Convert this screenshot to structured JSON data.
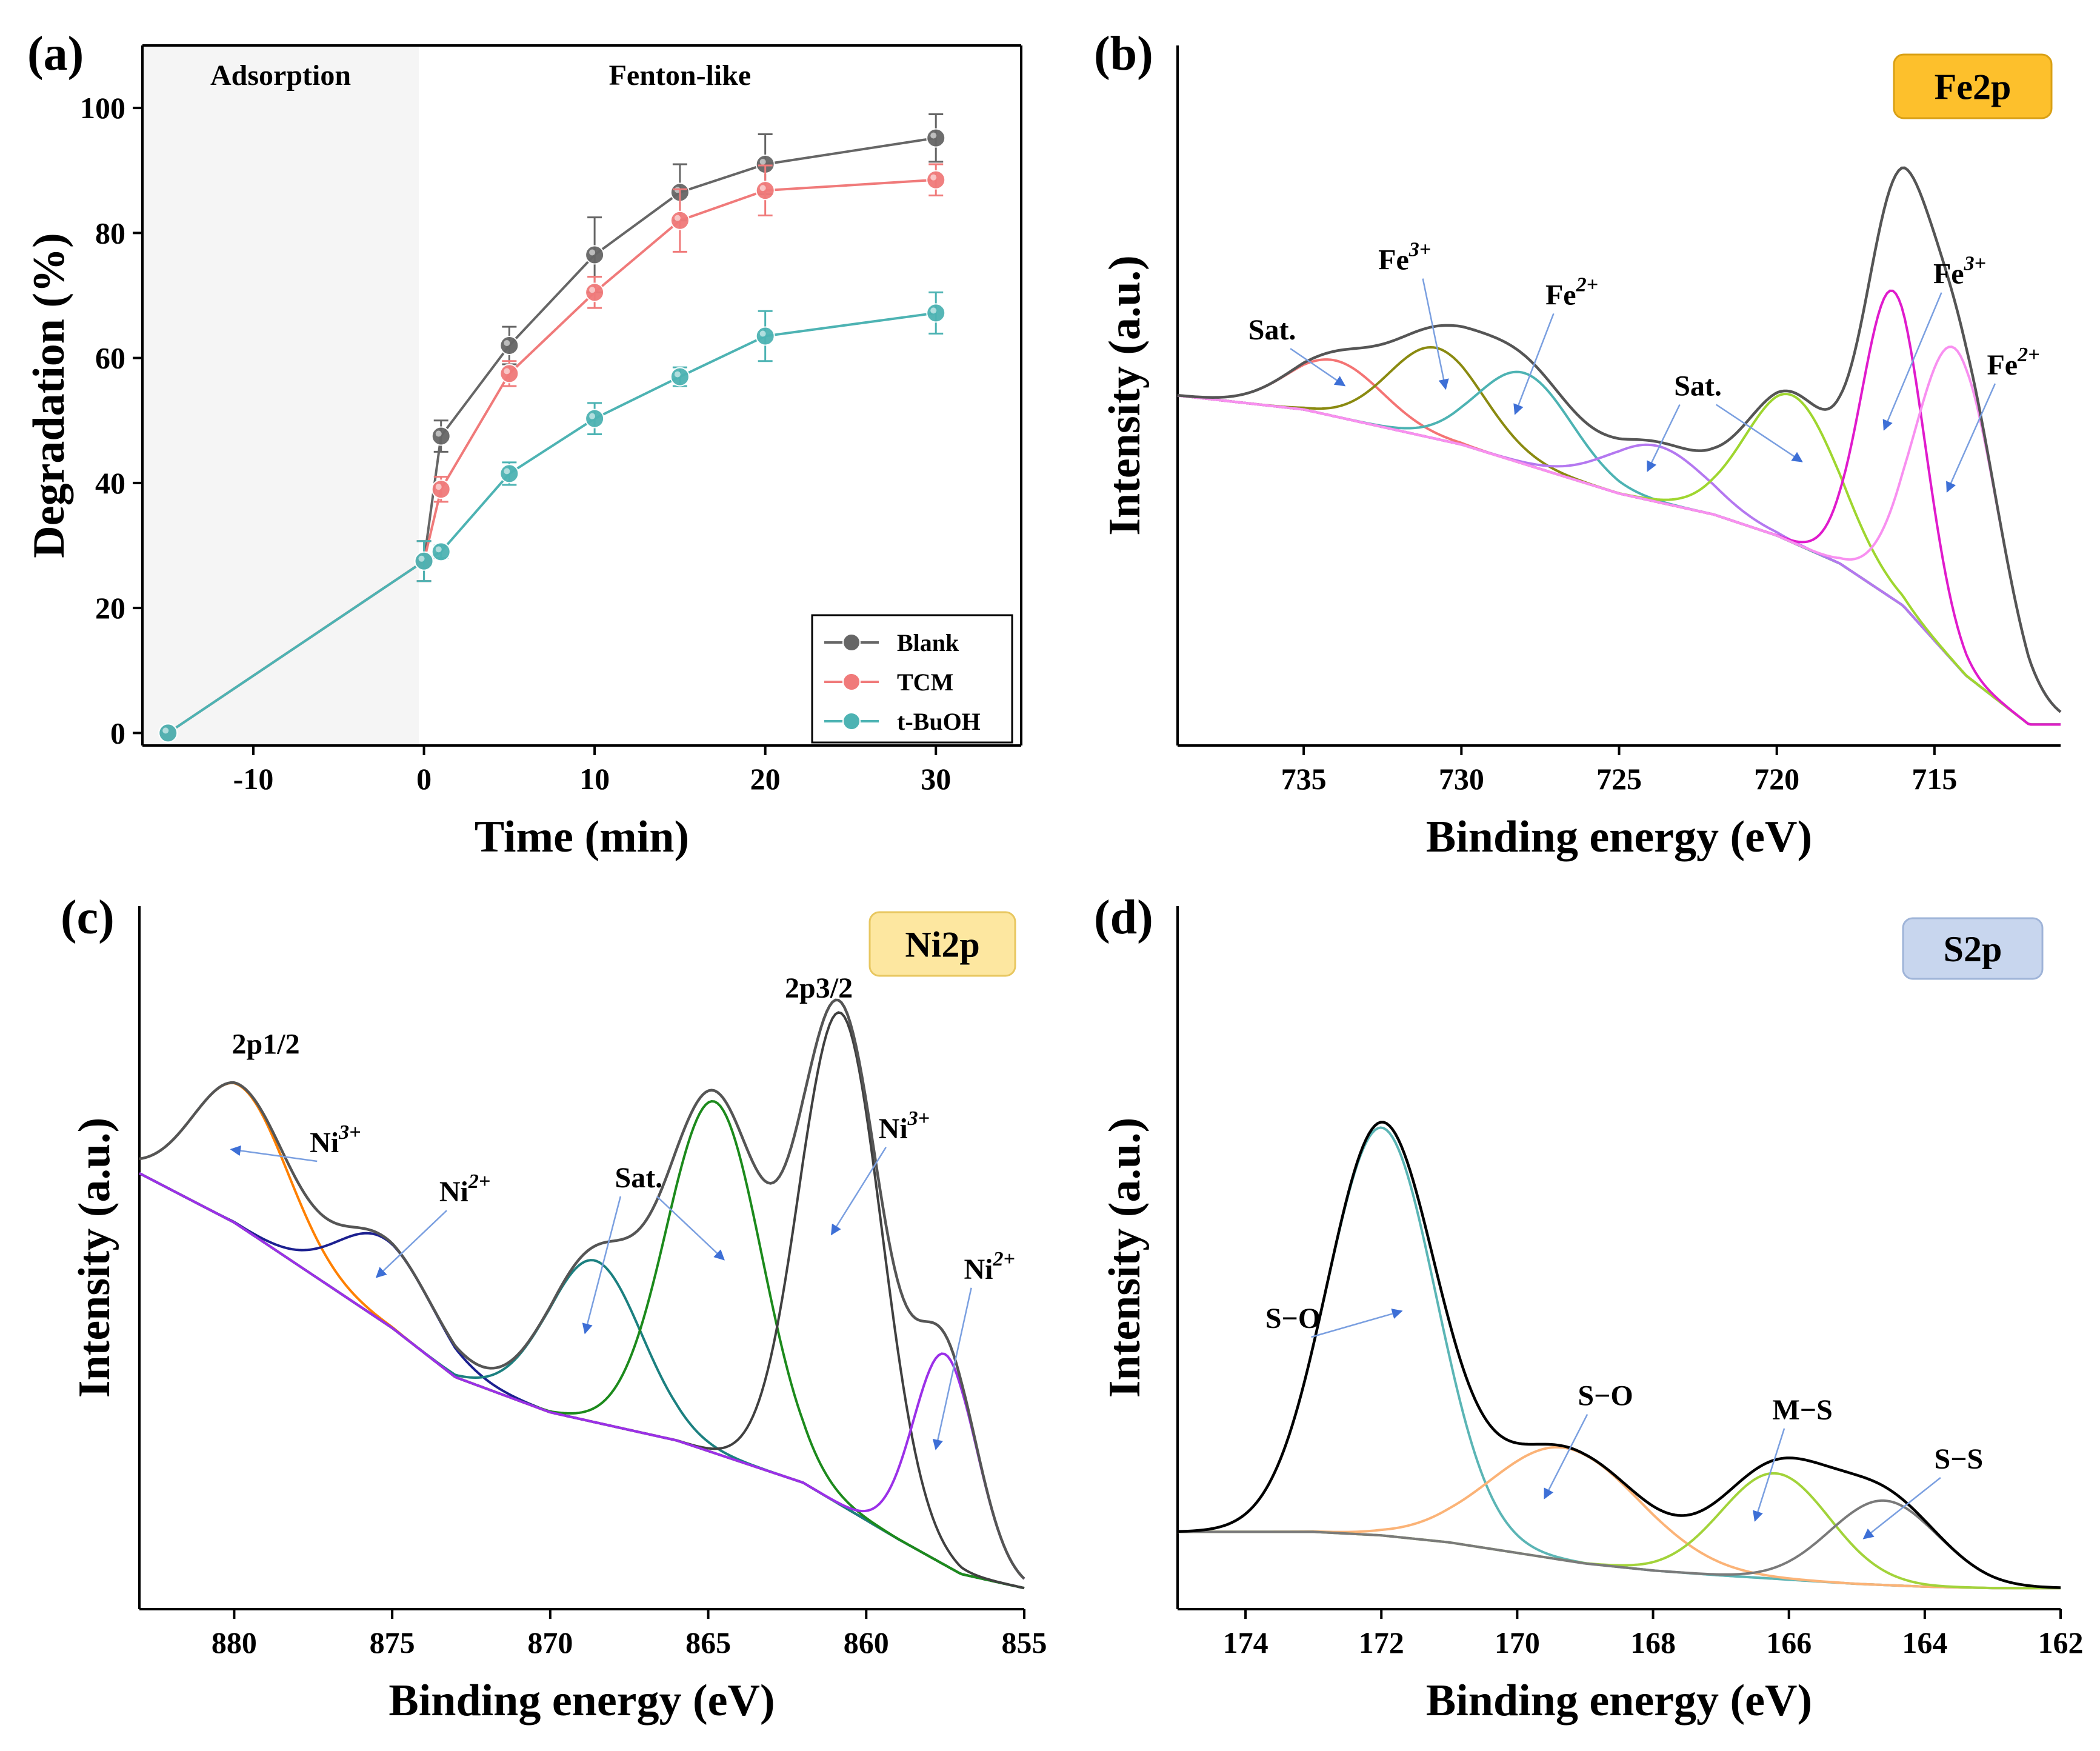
{
  "chart_data": [
    {
      "panel": "(a)",
      "type": "line",
      "xlabel": "Time (min)",
      "ylabel": "Degradation (%)",
      "xlim": [
        -16.5,
        35
      ],
      "ylim": [
        -2,
        110
      ],
      "xticks": [
        -10,
        0,
        10,
        20,
        30
      ],
      "yticks": [
        0,
        20,
        40,
        60,
        80,
        100
      ],
      "regions": [
        {
          "label": "Adsorption",
          "range": [
            -16.5,
            -0.3
          ],
          "color": "#f5f5f5"
        },
        {
          "label": "Fenton-like",
          "range": [
            -0.3,
            35
          ],
          "color": "#ffffff"
        }
      ],
      "legend_position": "bottom-right",
      "series": [
        {
          "name": "Blank",
          "color": "#666666",
          "x": [
            -15,
            0,
            1,
            5,
            10,
            15,
            20,
            30
          ],
          "y": [
            0,
            27.5,
            47.5,
            62,
            76.5,
            86.5,
            91,
            95.2
          ],
          "err": [
            0,
            3.2,
            2.5,
            3,
            6,
            4.5,
            4.8,
            3.8
          ]
        },
        {
          "name": "TCM",
          "color": "#f07a7a",
          "x": [
            -15,
            0,
            1,
            5,
            10,
            15,
            20,
            30
          ],
          "y": [
            0,
            27.5,
            39,
            57.5,
            70.5,
            82,
            86.8,
            88.5
          ],
          "err": [
            0,
            3.2,
            2,
            2,
            2.5,
            5,
            4,
            2.5
          ]
        },
        {
          "name": "t-BuOH",
          "color": "#4db3b3",
          "x": [
            -15,
            0,
            1,
            5,
            10,
            15,
            20,
            30
          ],
          "y": [
            0,
            27.5,
            29,
            41.5,
            50.3,
            57,
            63.5,
            67.2
          ],
          "err": [
            0,
            3.2,
            1,
            1.8,
            2.5,
            1.5,
            4,
            3.3
          ]
        }
      ]
    },
    {
      "panel": "(b)",
      "type": "line",
      "xlabel": "Binding energy (eV)",
      "ylabel": "Intensity (a.u.)",
      "xlim": [
        739,
        711
      ],
      "ylim": [
        0,
        1
      ],
      "xticks": [
        735,
        730,
        725,
        720,
        715
      ],
      "badge": {
        "text": "Fe2p",
        "fill": "#fdc02c",
        "stroke": "#d9a015"
      },
      "background": {
        "x": [
          739,
          735,
          730,
          725,
          722,
          720,
          718,
          716,
          714,
          712,
          711
        ],
        "y": [
          0.5,
          0.48,
          0.43,
          0.36,
          0.33,
          0.3,
          0.26,
          0.2,
          0.1,
          0.03,
          0.03
        ]
      },
      "peaks": [
        {
          "label": "Sat.",
          "center": 734,
          "height": 0.08,
          "width": 1.5,
          "color": "#f47474"
        },
        {
          "label": "Fe3+",
          "center": 730.8,
          "height": 0.13,
          "width": 1.5,
          "color": "#8a8a10"
        },
        {
          "label": "Fe2+",
          "center": 728,
          "height": 0.13,
          "width": 1.5,
          "color": "#4db3b3"
        },
        {
          "label": "Sat.",
          "center": 723.8,
          "height": 0.08,
          "width": 1.6,
          "color": "#b478f0"
        },
        {
          "label": "Sat.",
          "center": 719.5,
          "height": 0.21,
          "width": 1.5,
          "color": "#9fd62f"
        },
        {
          "label": "Fe3+",
          "center": 716.3,
          "height": 0.44,
          "width": 1.0,
          "color": "#e01bcc"
        },
        {
          "label": "Fe2+",
          "center": 714.3,
          "height": 0.45,
          "width": 1.3,
          "color": "#f890f0"
        }
      ],
      "annotations": [
        {
          "text": "Sat.",
          "x": 736,
          "y": 0.58
        },
        {
          "text": "Fe",
          "sup": "3+",
          "x": 731.8,
          "y": 0.68
        },
        {
          "text": "Fe",
          "sup": "2+",
          "x": 726.5,
          "y": 0.63
        },
        {
          "text": "Sat.",
          "x": 722.5,
          "y": 0.5
        },
        {
          "text": "Fe",
          "sup": "3+",
          "x": 714.2,
          "y": 0.66
        },
        {
          "text": "Fe",
          "sup": "2+",
          "x": 712.5,
          "y": 0.53
        }
      ]
    },
    {
      "panel": "(c)",
      "type": "line",
      "xlabel": "Binding energy (eV)",
      "ylabel": "Intensity (a.u.)",
      "xlim": [
        883,
        855
      ],
      "ylim": [
        0,
        1
      ],
      "xticks": [
        880,
        875,
        870,
        865,
        860,
        855
      ],
      "badge": {
        "text": "Ni2p",
        "fill": "#fde7a0",
        "stroke": "#e8c760"
      },
      "background": {
        "x": [
          883,
          880,
          877,
          875,
          873,
          870,
          866,
          862,
          859,
          857,
          855
        ],
        "y": [
          0.62,
          0.55,
          0.46,
          0.4,
          0.33,
          0.28,
          0.24,
          0.18,
          0.1,
          0.05,
          0.03
        ]
      },
      "peaks": [
        {
          "label": "Ni3+",
          "center": 879.8,
          "height": 0.2,
          "width": 1.5,
          "color": "#ff8000"
        },
        {
          "label": "Ni2+",
          "center": 875.2,
          "height": 0.12,
          "width": 1.5,
          "color": "#1c2090"
        },
        {
          "label": "Sat.",
          "center": 868.6,
          "height": 0.23,
          "width": 1.5,
          "color": "#1b8080"
        },
        {
          "label": "Sat.",
          "center": 864.8,
          "height": 0.5,
          "width": 1.5,
          "color": "#1c8a1c"
        },
        {
          "label": "Ni3+",
          "center": 860.8,
          "height": 0.7,
          "width": 1.3,
          "color": "#404040"
        },
        {
          "label": "Ni2+",
          "center": 857.5,
          "height": 0.3,
          "width": 1.0,
          "color": "#9b30e8"
        }
      ],
      "annotations": [
        {
          "text": "2p1/2",
          "x": 879,
          "y": 0.79,
          "color": "#1f78c8"
        },
        {
          "text": "2p3/2",
          "x": 861.5,
          "y": 0.87,
          "color": "#1f78c8"
        },
        {
          "text": "Ni",
          "sup": "3+",
          "x": 876.8,
          "y": 0.65
        },
        {
          "text": "Ni",
          "sup": "2+",
          "x": 872.7,
          "y": 0.58
        },
        {
          "text": "Sat.",
          "x": 867.2,
          "y": 0.6
        },
        {
          "text": "Ni",
          "sup": "3+",
          "x": 858.8,
          "y": 0.67
        },
        {
          "text": "Ni",
          "sup": "2+",
          "x": 856.1,
          "y": 0.47
        }
      ]
    },
    {
      "panel": "(d)",
      "type": "line",
      "xlabel": "Binding energy (eV)",
      "ylabel": "Intensity (a.u.)",
      "xlim": [
        175,
        162
      ],
      "ylim": [
        0,
        1
      ],
      "xticks": [
        174,
        172,
        170,
        168,
        166,
        164,
        162
      ],
      "badge": {
        "text": "S2p",
        "fill": "#c8d6ee",
        "stroke": "#9fb4d8"
      },
      "background": {
        "x": [
          175,
          173,
          172,
          171,
          170,
          169,
          168,
          167,
          166,
          165,
          164,
          163,
          162
        ],
        "y": [
          0.11,
          0.11,
          0.105,
          0.095,
          0.08,
          0.065,
          0.055,
          0.048,
          0.042,
          0.036,
          0.032,
          0.03,
          0.03
        ]
      },
      "peaks": [
        {
          "label": "S−O",
          "center": 172,
          "height": 0.58,
          "width": 0.8,
          "color": "#5bb5b5"
        },
        {
          "label": "S−O",
          "center": 169.3,
          "height": 0.16,
          "width": 1.1,
          "color": "#fbb377"
        },
        {
          "label": "M−S",
          "center": 166.2,
          "height": 0.15,
          "width": 0.8,
          "color": "#a2d33a"
        },
        {
          "label": "S−S",
          "center": 164.6,
          "height": 0.12,
          "width": 0.8,
          "color": "#7a7a7a"
        }
      ],
      "annotations": [
        {
          "text": "S−O",
          "x": 173.3,
          "y": 0.4
        },
        {
          "text": "S−O",
          "x": 168.7,
          "y": 0.29
        },
        {
          "text": "M−S",
          "x": 165.8,
          "y": 0.27
        },
        {
          "text": "S−S",
          "x": 163.5,
          "y": 0.2
        }
      ]
    }
  ]
}
